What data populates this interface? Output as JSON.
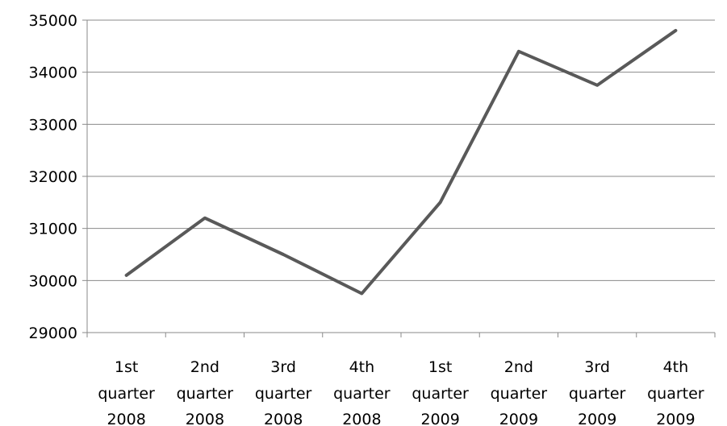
{
  "chart_data": {
    "type": "line",
    "categories": [
      [
        "1st",
        "quarter",
        "2008"
      ],
      [
        "2nd",
        "quarter",
        "2008"
      ],
      [
        "3rd",
        "quarter",
        "2008"
      ],
      [
        "4th",
        "quarter",
        "2008"
      ],
      [
        "1st",
        "quarter",
        "2009"
      ],
      [
        "2nd",
        "quarter",
        "2009"
      ],
      [
        "3rd",
        "quarter",
        "2009"
      ],
      [
        "4th",
        "quarter",
        "2009"
      ]
    ],
    "series": [
      {
        "values": [
          30100,
          31200,
          30500,
          29750,
          31500,
          34400,
          33750,
          34800
        ],
        "color": "#595959"
      }
    ],
    "ylim": [
      29000,
      35000
    ],
    "yticks": [
      "29000",
      "30000",
      "31000",
      "32000",
      "33000",
      "34000",
      "35000"
    ],
    "grid": true,
    "legend": "none",
    "title": "",
    "xlabel": "",
    "ylabel": ""
  }
}
